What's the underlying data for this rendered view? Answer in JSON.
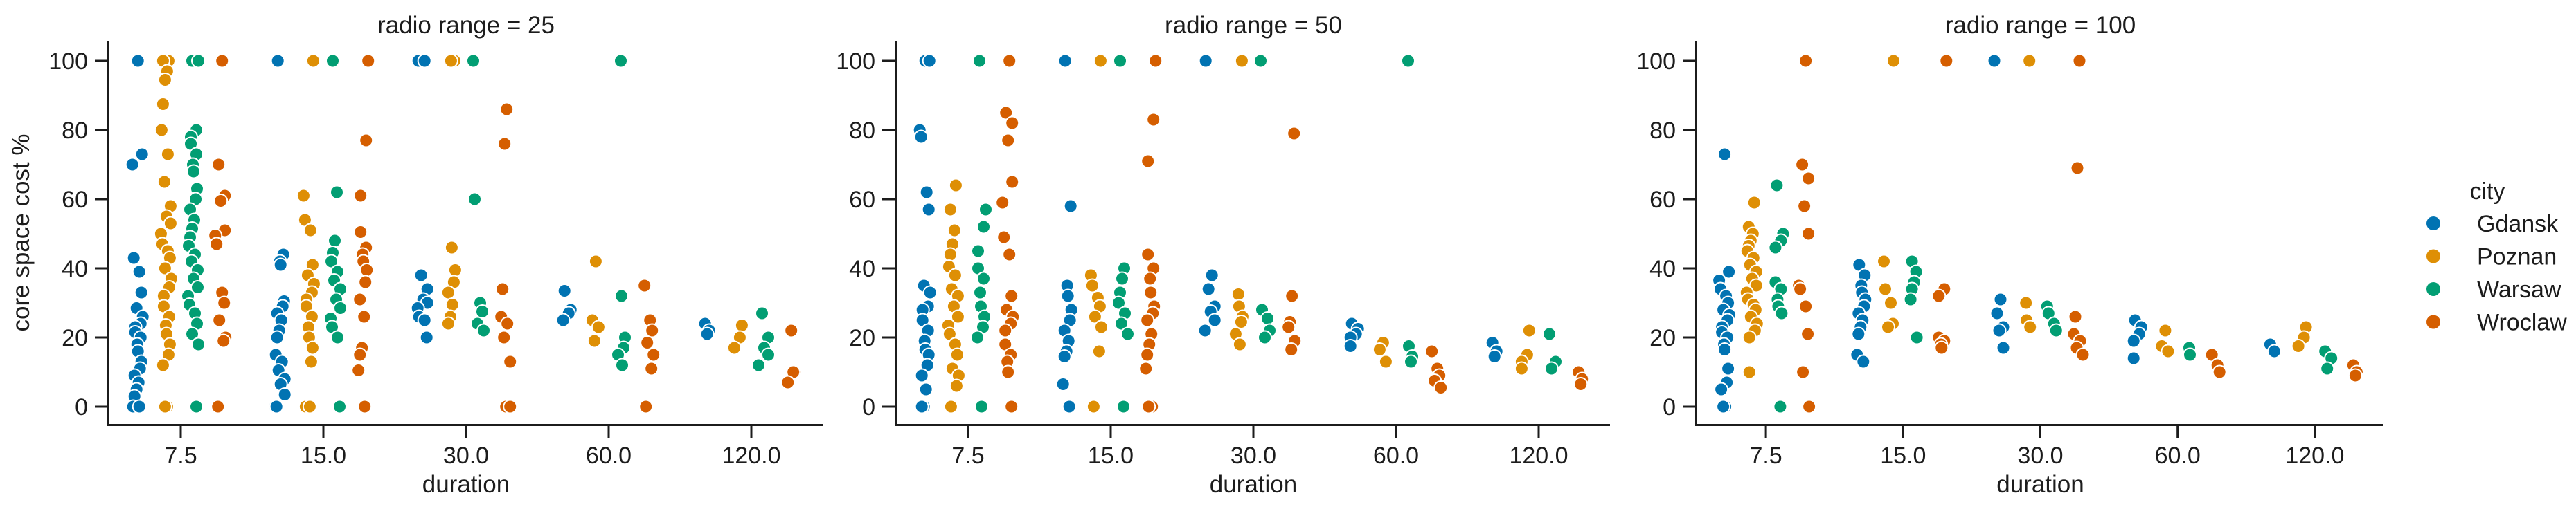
{
  "chart_data": {
    "type": "scatter",
    "subtype": "strip-plot-faceted",
    "facet_variable": "radio range",
    "xlabel": "duration",
    "ylabel": "core space cost %",
    "categories": [
      "7.5",
      "15.0",
      "30.0",
      "60.0",
      "120.0"
    ],
    "yticks": [
      0,
      20,
      40,
      60,
      80,
      100
    ],
    "ylim": [
      -5,
      106
    ],
    "grid": false,
    "background": "#ffffff",
    "text_color": "#1c1c1c",
    "legend": {
      "title": "city",
      "position": "right",
      "entries": [
        {
          "label": "Gdansk",
          "color": "#0173b2"
        },
        {
          "label": "Poznan",
          "color": "#de8f05"
        },
        {
          "label": "Warsaw",
          "color": "#029e73"
        },
        {
          "label": "Wroclaw",
          "color": "#d55e00"
        }
      ]
    },
    "facets": [
      {
        "title": "radio range = 25",
        "groups": [
          {
            "city": "Gdansk",
            "duration": "7.5",
            "values": [
              100,
              73,
              70,
              43,
              39,
              33,
              28.5,
              26,
              24,
              23,
              21.5,
              20,
              18,
              16,
              13,
              11,
              9,
              7,
              5,
              3,
              0,
              0
            ]
          },
          {
            "city": "Gdansk",
            "duration": "15.0",
            "values": [
              100,
              44,
              42,
              41,
              30.5,
              29,
              27,
              25,
              22,
              20,
              15,
              13,
              10.5,
              8,
              6.5,
              3.5,
              0,
              0
            ]
          },
          {
            "city": "Gdansk",
            "duration": "30.0",
            "values": [
              100,
              100,
              38,
              34,
              31,
              30,
              28.5,
              26,
              25,
              20
            ]
          },
          {
            "city": "Gdansk",
            "duration": "60.0",
            "values": [
              33.5,
              28,
              27,
              25
            ]
          },
          {
            "city": "Gdansk",
            "duration": "120.0",
            "values": [
              24,
              22,
              21
            ]
          },
          {
            "city": "Poznan",
            "duration": "7.5",
            "values": [
              100,
              100,
              97,
              94.5,
              87.5,
              80,
              73,
              65,
              58,
              55,
              53,
              50,
              47,
              45,
              43,
              40,
              37,
              34.5,
              32,
              29,
              26,
              23.5,
              21,
              18,
              15,
              12,
              0,
              0
            ]
          },
          {
            "city": "Poznan",
            "duration": "15.0",
            "values": [
              100,
              61,
              54,
              51,
              41,
              38,
              35.5,
              33,
              31,
              29,
              26,
              23,
              20,
              17,
              13,
              0,
              0
            ]
          },
          {
            "city": "Poznan",
            "duration": "30.0",
            "values": [
              100,
              100,
              46,
              39.5,
              36,
              33,
              29.5,
              26,
              24
            ]
          },
          {
            "city": "Poznan",
            "duration": "60.0",
            "values": [
              42,
              25,
              23,
              19
            ]
          },
          {
            "city": "Poznan",
            "duration": "120.0",
            "values": [
              23.5,
              20,
              17
            ]
          },
          {
            "city": "Warsaw",
            "duration": "7.5",
            "values": [
              100,
              100,
              80,
              78,
              76,
              73,
              70,
              68,
              63,
              60,
              57,
              54,
              51.5,
              49,
              46.5,
              44,
              42,
              39.5,
              37,
              34.5,
              32,
              29.5,
              27,
              24,
              21,
              18,
              0
            ]
          },
          {
            "city": "Warsaw",
            "duration": "15.0",
            "values": [
              100,
              62,
              48,
              44.5,
              42,
              39,
              36.5,
              34,
              31,
              28.5,
              25.5,
              23,
              20,
              0
            ]
          },
          {
            "city": "Warsaw",
            "duration": "30.0",
            "values": [
              100,
              60,
              30,
              27.5,
              24,
              22
            ]
          },
          {
            "city": "Warsaw",
            "duration": "60.0",
            "values": [
              100,
              32,
              20,
              17,
              15,
              12
            ]
          },
          {
            "city": "Warsaw",
            "duration": "120.0",
            "values": [
              27,
              20,
              17,
              15,
              12
            ]
          },
          {
            "city": "Wroclaw",
            "duration": "7.5",
            "values": [
              100,
              70,
              61,
              59.5,
              51,
              49.5,
              47,
              33,
              30,
              25,
              20,
              19,
              0
            ]
          },
          {
            "city": "Wroclaw",
            "duration": "15.0",
            "values": [
              100,
              77,
              61,
              50.5,
              46,
              44,
              42,
              39.5,
              36,
              31,
              26,
              17,
              15,
              10.5,
              0
            ]
          },
          {
            "city": "Wroclaw",
            "duration": "30.0",
            "values": [
              86,
              76,
              34,
              26,
              24,
              20,
              13,
              0,
              0
            ]
          },
          {
            "city": "Wroclaw",
            "duration": "60.0",
            "values": [
              35,
              25,
              22,
              18.5,
              15,
              11,
              0
            ]
          },
          {
            "city": "Wroclaw",
            "duration": "120.0",
            "values": [
              22,
              10,
              10,
              7
            ]
          }
        ]
      },
      {
        "title": "radio range = 50",
        "groups": [
          {
            "city": "Gdansk",
            "duration": "7.5",
            "values": [
              100,
              100,
              80,
              78,
              62,
              57,
              35,
              33,
              29,
              28,
              25,
              22,
              19,
              16.5,
              15,
              12,
              9,
              5,
              0,
              0
            ]
          },
          {
            "city": "Gdansk",
            "duration": "15.0",
            "values": [
              100,
              58,
              35,
              32,
              28,
              25,
              22,
              19,
              16,
              14.5,
              6.5,
              0
            ]
          },
          {
            "city": "Gdansk",
            "duration": "30.0",
            "values": [
              100,
              38,
              34,
              29,
              27.5,
              25,
              22
            ]
          },
          {
            "city": "Gdansk",
            "duration": "60.0",
            "values": [
              24,
              22.5,
              21,
              20,
              17.5
            ]
          },
          {
            "city": "Gdansk",
            "duration": "120.0",
            "values": [
              18.5,
              16,
              14.5
            ]
          },
          {
            "city": "Poznan",
            "duration": "7.5",
            "values": [
              64,
              57,
              51,
              47,
              44,
              40.5,
              38,
              34,
              32,
              29,
              26,
              23.5,
              21,
              18,
              15,
              11,
              9,
              6,
              0
            ]
          },
          {
            "city": "Poznan",
            "duration": "15.0",
            "values": [
              100,
              38,
              35,
              31.5,
              29,
              26,
              23,
              16,
              0,
              0
            ]
          },
          {
            "city": "Poznan",
            "duration": "30.0",
            "values": [
              100,
              32.5,
              29,
              26,
              24.5,
              21,
              18
            ]
          },
          {
            "city": "Poznan",
            "duration": "60.0",
            "values": [
              18.5,
              16.5,
              13
            ]
          },
          {
            "city": "Poznan",
            "duration": "120.0",
            "values": [
              22,
              15,
              13,
              11
            ]
          },
          {
            "city": "Warsaw",
            "duration": "7.5",
            "values": [
              100,
              57,
              52,
              45,
              40,
              37,
              33,
              29,
              26,
              23,
              20,
              0
            ]
          },
          {
            "city": "Warsaw",
            "duration": "15.0",
            "values": [
              100,
              40,
              37,
              33,
              30,
              27,
              24,
              21,
              0
            ]
          },
          {
            "city": "Warsaw",
            "duration": "30.0",
            "values": [
              100,
              28,
              25.5,
              22,
              20
            ]
          },
          {
            "city": "Warsaw",
            "duration": "60.0",
            "values": [
              100,
              17.5,
              14.5,
              13
            ]
          },
          {
            "city": "Warsaw",
            "duration": "120.0",
            "values": [
              21,
              13,
              11
            ]
          },
          {
            "city": "Wroclaw",
            "duration": "7.5",
            "values": [
              100,
              85,
              82,
              77,
              65,
              59,
              49,
              44,
              32,
              28,
              26,
              24,
              22,
              18,
              15,
              13,
              10,
              0
            ]
          },
          {
            "city": "Wroclaw",
            "duration": "15.0",
            "values": [
              100,
              83,
              71,
              44,
              40,
              37,
              33,
              29,
              27,
              25,
              21,
              18,
              15,
              11,
              0,
              0
            ]
          },
          {
            "city": "Wroclaw",
            "duration": "30.0",
            "values": [
              79,
              32,
              24.5,
              23,
              19,
              16.5
            ]
          },
          {
            "city": "Wroclaw",
            "duration": "60.0",
            "values": [
              16,
              11,
              9,
              7.5,
              5.5
            ]
          },
          {
            "city": "Wroclaw",
            "duration": "120.0",
            "values": [
              10,
              8,
              6.5
            ]
          }
        ]
      },
      {
        "title": "radio range = 100",
        "groups": [
          {
            "city": "Gdansk",
            "duration": "7.5",
            "values": [
              73,
              39,
              36.5,
              34,
              32,
              30,
              28,
              26.5,
              25,
              23,
              21.5,
              20,
              18,
              16.5,
              11,
              7,
              5,
              0,
              0
            ]
          },
          {
            "city": "Gdansk",
            "duration": "15.0",
            "values": [
              41,
              38,
              35,
              33,
              31,
              29,
              27,
              25,
              23,
              21,
              15,
              13
            ]
          },
          {
            "city": "Gdansk",
            "duration": "30.0",
            "values": [
              100,
              31,
              27,
              23,
              22,
              17
            ]
          },
          {
            "city": "Gdansk",
            "duration": "60.0",
            "values": [
              25,
              23,
              21,
              19,
              14
            ]
          },
          {
            "city": "Gdansk",
            "duration": "120.0",
            "values": [
              18,
              16
            ]
          },
          {
            "city": "Poznan",
            "duration": "7.5",
            "values": [
              59,
              52,
              50,
              48,
              46.5,
              45,
              43,
              41,
              39,
              37,
              35,
              33,
              31,
              29.5,
              28,
              26,
              24,
              22,
              20,
              10
            ]
          },
          {
            "city": "Poznan",
            "duration": "15.0",
            "values": [
              100,
              42,
              34,
              30,
              24,
              23
            ]
          },
          {
            "city": "Poznan",
            "duration": "30.0",
            "values": [
              100,
              30,
              25,
              23
            ]
          },
          {
            "city": "Poznan",
            "duration": "60.0",
            "values": [
              22,
              17.5,
              16
            ]
          },
          {
            "city": "Poznan",
            "duration": "120.0",
            "values": [
              23,
              20,
              17.5
            ]
          },
          {
            "city": "Warsaw",
            "duration": "7.5",
            "values": [
              64,
              50,
              48,
              46,
              36,
              34,
              31,
              29,
              27,
              0
            ]
          },
          {
            "city": "Warsaw",
            "duration": "15.0",
            "values": [
              42,
              39,
              36,
              34,
              31,
              20
            ]
          },
          {
            "city": "Warsaw",
            "duration": "30.0",
            "values": [
              29,
              27,
              24,
              22
            ]
          },
          {
            "city": "Warsaw",
            "duration": "60.0",
            "values": [
              17,
              15
            ]
          },
          {
            "city": "Warsaw",
            "duration": "120.0",
            "values": [
              16,
              14,
              11
            ]
          },
          {
            "city": "Wroclaw",
            "duration": "7.5",
            "values": [
              100,
              70,
              66,
              58,
              50,
              35,
              34,
              29,
              21,
              10,
              0
            ]
          },
          {
            "city": "Wroclaw",
            "duration": "15.0",
            "values": [
              100,
              34,
              32,
              20,
              19,
              18,
              17
            ]
          },
          {
            "city": "Wroclaw",
            "duration": "30.0",
            "values": [
              100,
              69,
              26,
              21,
              19,
              17,
              15
            ]
          },
          {
            "city": "Wroclaw",
            "duration": "60.0",
            "values": [
              15,
              12,
              10
            ]
          },
          {
            "city": "Wroclaw",
            "duration": "120.0",
            "values": [
              12,
              10,
              9
            ]
          }
        ]
      }
    ]
  }
}
